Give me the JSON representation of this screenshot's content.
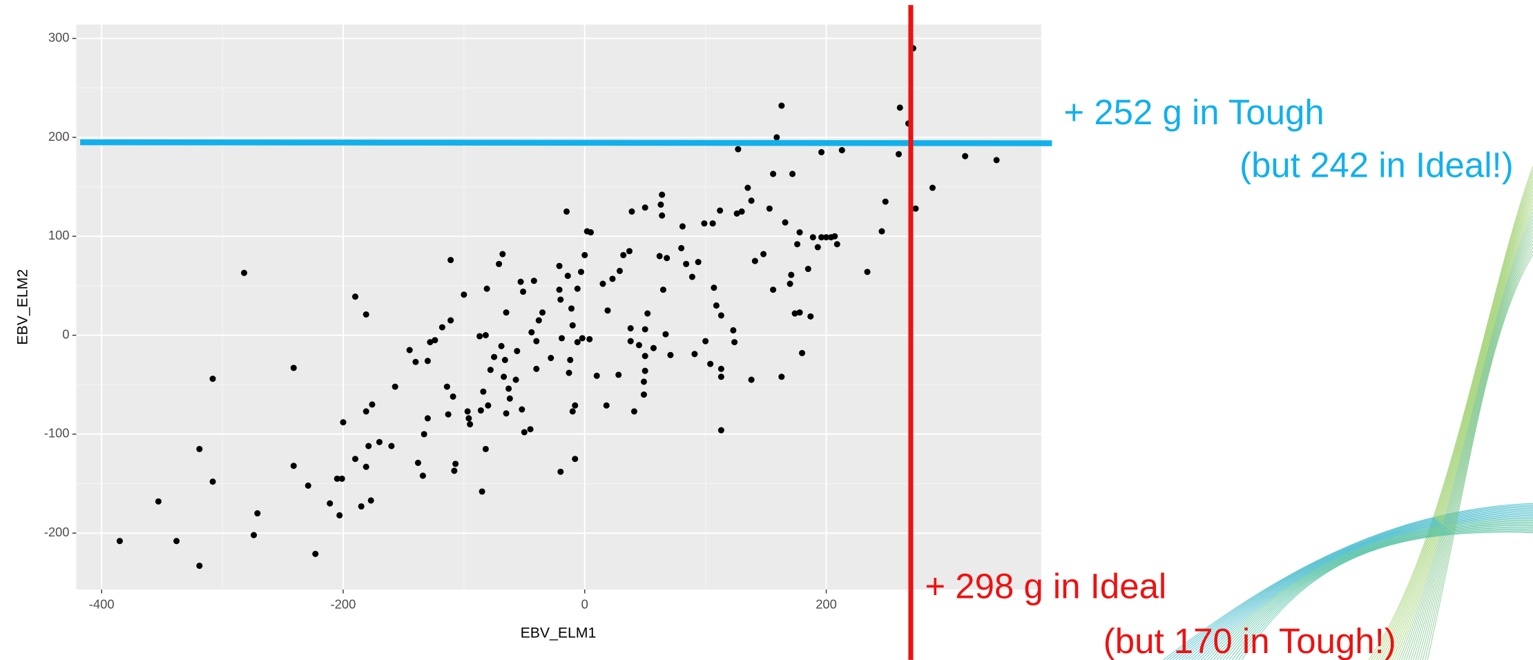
{
  "chart_data": {
    "type": "scatter",
    "x_label": "EBV_ELM1",
    "y_label": "EBV_ELM2",
    "xlim": [
      -421,
      378
    ],
    "ylim": [
      -257,
      314
    ],
    "xticks": [
      -400,
      -200,
      0,
      200
    ],
    "yticks": [
      -200,
      -100,
      0,
      100,
      200,
      300
    ],
    "grid": true,
    "color": "#000000",
    "reference_lines": [
      {
        "orientation": "horizontal",
        "value": 195,
        "color": "#12b0eb"
      },
      {
        "orientation": "vertical",
        "value": 270,
        "color": "#ee1111"
      }
    ],
    "annotations": [
      {
        "text": "+ 252 g in Tough",
        "color": "#12b0eb"
      },
      {
        "text": "(but 242 in Ideal!)",
        "color": "#12b0eb"
      },
      {
        "text": "+ 298 g in Ideal",
        "color": "#ee1111"
      },
      {
        "text": "(but 170 in Tough!)",
        "color": "#ee1111"
      }
    ],
    "x": [
      -385,
      -353,
      -338,
      -319,
      -319,
      -308,
      -308,
      -282,
      -274,
      -271,
      -241,
      -241,
      -229,
      -223,
      -211,
      -205,
      -201,
      -203,
      -200,
      -190,
      -190,
      -185,
      -181,
      -181,
      -181,
      -179,
      -177,
      -176,
      -170,
      -160,
      -157,
      -145,
      -140,
      -138,
      -134,
      -133,
      -130,
      -130,
      -128,
      -124,
      -118,
      -114,
      -113,
      -111,
      -111,
      -109,
      -108,
      -107,
      -100,
      -97,
      -96,
      -95,
      -87,
      -86,
      -85,
      -84,
      -82,
      -82,
      -81,
      -80,
      -78,
      -75,
      -71,
      -69,
      -68,
      -67,
      -66,
      -65,
      -65,
      -63,
      -62,
      -57,
      -56,
      -53,
      -52,
      -51,
      -50,
      -45,
      -44,
      -42,
      -40,
      -40,
      -38,
      -35,
      -28,
      -21,
      -21,
      -20,
      -20,
      -19,
      -15,
      -14,
      -13,
      -12,
      -11,
      -10,
      -10,
      -8,
      -8,
      -6,
      -6,
      -3,
      -2,
      0,
      2,
      5,
      4,
      10,
      15,
      18,
      19,
      23,
      28,
      29,
      32,
      37,
      38,
      38,
      39,
      41,
      45,
      49,
      49,
      50,
      50,
      50,
      50,
      52,
      57,
      62,
      63,
      64,
      64,
      65,
      67,
      68,
      71,
      80,
      81,
      84,
      89,
      91,
      94,
      99,
      100,
      104,
      106,
      107,
      109,
      112,
      113,
      113,
      113,
      113,
      123,
      124,
      126,
      127,
      130,
      135,
      138,
      138,
      141,
      148,
      153,
      156,
      156,
      159,
      163,
      163,
      166,
      170,
      171,
      172,
      174,
      176,
      178,
      178,
      180,
      185,
      187,
      189,
      193,
      196,
      196,
      200,
      204,
      207,
      209,
      213,
      234,
      246,
      249,
      260,
      261,
      268,
      272,
      274,
      288,
      315,
      341
    ],
    "y": [
      -208,
      -168,
      -208,
      -115,
      -233,
      -44,
      -148,
      63,
      -202,
      -180,
      -33,
      -132,
      -152,
      -221,
      -170,
      -145,
      -145,
      -182,
      -88,
      39,
      -125,
      -173,
      21,
      -77,
      -133,
      -112,
      -167,
      -70,
      -108,
      -112,
      -52,
      -15,
      -27,
      -129,
      -142,
      -100,
      -84,
      -26,
      -7,
      -5,
      8,
      -52,
      -80,
      76,
      15,
      -62,
      -137,
      -130,
      41,
      -77,
      -84,
      -90,
      -1,
      -76,
      -158,
      -57,
      0,
      -115,
      47,
      -71,
      -35,
      -22,
      72,
      -11,
      82,
      -42,
      -25,
      23,
      -79,
      -54,
      -64,
      -45,
      -16,
      54,
      -75,
      44,
      -98,
      -95,
      3,
      55,
      -6,
      -34,
      15,
      23,
      -23,
      70,
      46,
      36,
      -138,
      -3,
      125,
      60,
      -38,
      -25,
      27,
      10,
      -77,
      -71,
      -125,
      -7,
      47,
      64,
      -3,
      81,
      105,
      104,
      -4,
      -41,
      52,
      -71,
      25,
      57,
      -40,
      65,
      81,
      85,
      7,
      -6,
      125,
      -77,
      -10,
      -60,
      -47,
      -36,
      -21,
      129,
      6,
      22,
      -13,
      80,
      132,
      121,
      142,
      46,
      1,
      78,
      -20,
      88,
      110,
      72,
      59,
      -19,
      74,
      113,
      -6,
      -29,
      113,
      48,
      30,
      126,
      -34,
      -42,
      20,
      -96,
      5,
      -7,
      123,
      188,
      125,
      149,
      -45,
      136,
      75,
      82,
      128,
      163,
      46,
      200,
      -42,
      232,
      114,
      52,
      61,
      163,
      22,
      92,
      23,
      104,
      -18,
      67,
      19,
      99,
      89,
      185,
      99,
      99,
      99,
      100,
      92,
      187,
      64,
      105,
      135,
      183,
      230,
      214,
      290,
      128,
      149,
      181,
      177
    ]
  }
}
